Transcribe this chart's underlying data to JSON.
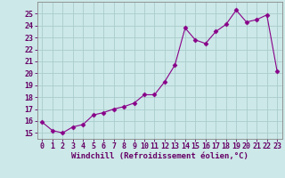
{
  "x": [
    0,
    1,
    2,
    3,
    4,
    5,
    6,
    7,
    8,
    9,
    10,
    11,
    12,
    13,
    14,
    15,
    16,
    17,
    18,
    19,
    20,
    21,
    22,
    23
  ],
  "y": [
    15.9,
    15.2,
    15.0,
    15.5,
    15.7,
    16.5,
    16.7,
    17.0,
    17.2,
    17.5,
    18.2,
    18.2,
    19.3,
    20.7,
    23.8,
    22.8,
    22.5,
    23.5,
    24.1,
    25.3,
    24.3,
    24.5,
    24.9,
    20.2
  ],
  "line_color": "#880088",
  "marker": "D",
  "marker_size": 2.5,
  "bg_color": "#cce8e8",
  "grid_color": "#aacccc",
  "xlabel": "Windchill (Refroidissement éolien,°C)",
  "xlabel_fontsize": 6.5,
  "tick_fontsize": 6,
  "ylim": [
    14.5,
    26.0
  ],
  "xlim": [
    -0.5,
    23.5
  ],
  "yticks": [
    15,
    16,
    17,
    18,
    19,
    20,
    21,
    22,
    23,
    24,
    25
  ],
  "xticks": [
    0,
    1,
    2,
    3,
    4,
    5,
    6,
    7,
    8,
    9,
    10,
    11,
    12,
    13,
    14,
    15,
    16,
    17,
    18,
    19,
    20,
    21,
    22,
    23
  ]
}
